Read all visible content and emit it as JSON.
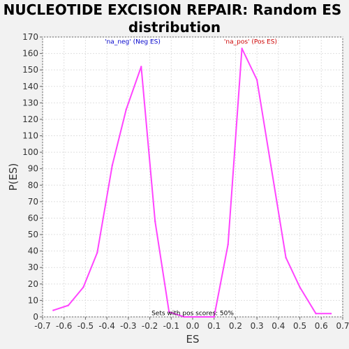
{
  "chart_data": {
    "type": "line",
    "title_lines": [
      "NUCLEOTIDE EXCISION REPAIR: Random ES",
      "distribution"
    ],
    "xlabel": "ES",
    "ylabel": "P(ES)",
    "xlim": [
      -0.7,
      0.7
    ],
    "ylim": [
      0,
      170
    ],
    "xticks": [
      -0.7,
      -0.6,
      -0.5,
      -0.4,
      -0.3,
      -0.2,
      -0.1,
      0.0,
      0.1,
      0.2,
      0.3,
      0.4,
      0.5,
      0.6,
      0.7
    ],
    "xtick_labels": [
      "-0.7",
      "-0.6",
      "-0.5",
      "-0.4",
      "-0.3",
      "-0.2",
      "-0.1",
      "0.0",
      "0.1",
      "0.2",
      "0.3",
      "0.4",
      "0.5",
      "0.6",
      "0.7"
    ],
    "yticks": [
      0,
      10,
      20,
      30,
      40,
      50,
      60,
      70,
      80,
      90,
      100,
      110,
      120,
      130,
      140,
      150,
      160,
      170
    ],
    "grid": true,
    "series": [
      {
        "color": "#ff44ff",
        "points": [
          [
            -0.65,
            4
          ],
          [
            -0.58,
            7
          ],
          [
            -0.51,
            18
          ],
          [
            -0.445,
            39
          ],
          [
            -0.375,
            92
          ],
          [
            -0.31,
            126
          ],
          [
            -0.24,
            152
          ],
          [
            -0.175,
            58
          ],
          [
            -0.11,
            3
          ],
          [
            -0.04,
            0
          ],
          [
            0.03,
            0
          ],
          [
            0.1,
            0
          ],
          [
            0.165,
            44
          ],
          [
            0.23,
            163
          ],
          [
            0.3,
            144
          ],
          [
            0.365,
            92
          ],
          [
            0.435,
            36
          ],
          [
            0.5,
            18
          ],
          [
            0.575,
            2
          ],
          [
            0.645,
            2
          ]
        ]
      }
    ],
    "annotations": [
      {
        "text": "'na_neg' (Neg ES)",
        "color": "#0000cc",
        "x": -0.28,
        "y": 166
      },
      {
        "text": "'na_pos' (Pos ES)",
        "color": "#cc0000",
        "x": 0.27,
        "y": 166
      }
    ],
    "footer_note": "Sets with pos scores: 50%",
    "footer_note_pos": [
      0.0,
      1
    ]
  }
}
